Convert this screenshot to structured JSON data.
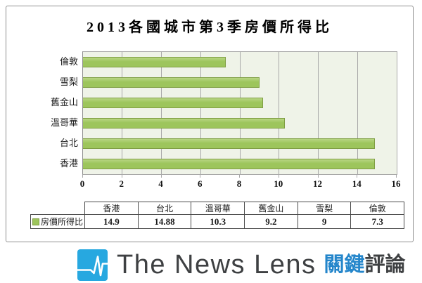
{
  "title": "2013各國城市第3季房價所得比",
  "chart_data": {
    "type": "bar",
    "orientation": "horizontal",
    "title": "2013各國城市第3季房價所得比",
    "series_name": "房價所得比",
    "categories_top_to_bottom": [
      "倫敦",
      "雪梨",
      "舊金山",
      "溫哥華",
      "台北",
      "香港"
    ],
    "values": [
      7.3,
      9,
      9.2,
      10.3,
      14.88,
      14.9
    ],
    "xlim": [
      0,
      16
    ],
    "xticks": [
      0,
      2,
      4,
      6,
      8,
      10,
      12,
      14,
      16
    ],
    "grid": "vertical-only",
    "legend_position": "table-below-left"
  },
  "table": {
    "legend_label": "房價所得比",
    "columns": [
      "香港",
      "台北",
      "溫哥華",
      "舊金山",
      "雪梨",
      "倫敦"
    ],
    "values": [
      "14.9",
      "14.88",
      "10.3",
      "9.2",
      "9",
      "7.3"
    ]
  },
  "logo": {
    "brand": "The News Lens",
    "cjk_primary": "關鍵",
    "cjk_secondary": "評論",
    "icon": "pulse-icon"
  },
  "colors": {
    "bar_fill": "#9dc55c",
    "bar_border": "#7f9e43",
    "plot_bg": "#eff3e8",
    "grid_line": "#a8a8a8",
    "frame_border": "#8f8f8f",
    "table_border": "#4a4a4a",
    "logo_blue": "#27a8e0",
    "logo_text": "#3e4042",
    "cjk_blue": "#2486cb"
  }
}
